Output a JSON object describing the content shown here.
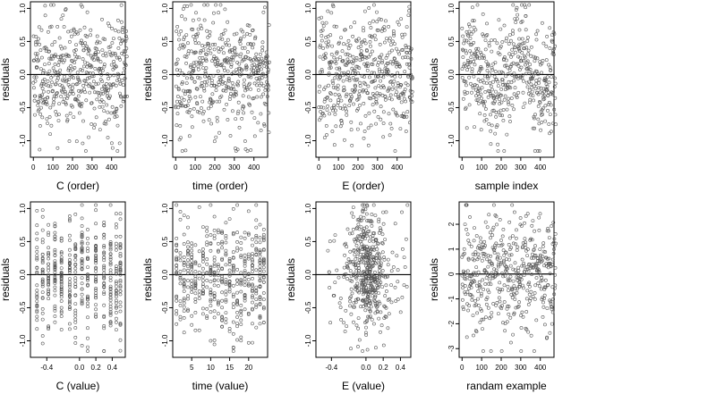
{
  "chart_data": [
    {
      "type": "scatter",
      "xlabel": "C (order)",
      "ylabel": "residuals",
      "xlim": [
        -15,
        470
      ],
      "ylim": [
        -1.25,
        1.1
      ],
      "xticks": [
        0,
        100,
        200,
        300,
        400
      ],
      "xtick_labels": [
        "0",
        "100",
        "200",
        "300",
        "400"
      ],
      "yticks": [
        -1.0,
        -0.5,
        0.0,
        0.5,
        1.0
      ],
      "ytick_labels": [
        "-1.0",
        "-0.5",
        "0.0",
        "0.5",
        "1.0"
      ],
      "hline": 0,
      "n": 480,
      "grid": false,
      "x_kind": "index",
      "seed": 11
    },
    {
      "type": "scatter",
      "xlabel": "time (order)",
      "ylabel": "residuals",
      "xlim": [
        -15,
        470
      ],
      "ylim": [
        -1.25,
        1.1
      ],
      "xticks": [
        0,
        100,
        200,
        300,
        400
      ],
      "xtick_labels": [
        "0",
        "100",
        "200",
        "300",
        "400"
      ],
      "yticks": [
        -1.0,
        -0.5,
        0.0,
        0.5,
        1.0
      ],
      "ytick_labels": [
        "-1.0",
        "-0.5",
        "0.0",
        "0.5",
        "1.0"
      ],
      "hline": 0,
      "n": 480,
      "grid": false,
      "x_kind": "index",
      "seed": 23
    },
    {
      "type": "scatter",
      "xlabel": "E (order)",
      "ylabel": "residuals",
      "xlim": [
        -15,
        470
      ],
      "ylim": [
        -1.25,
        1.1
      ],
      "xticks": [
        0,
        100,
        200,
        300,
        400
      ],
      "xtick_labels": [
        "0",
        "100",
        "200",
        "300",
        "400"
      ],
      "yticks": [
        -1.0,
        -0.5,
        0.0,
        0.5,
        1.0
      ],
      "ytick_labels": [
        "-1.0",
        "-0.5",
        "0.0",
        "0.5",
        "1.0"
      ],
      "hline": 0,
      "n": 480,
      "grid": false,
      "x_kind": "index",
      "seed": 37
    },
    {
      "type": "scatter",
      "xlabel": "sample index",
      "ylabel": "residuals",
      "xlim": [
        -15,
        470
      ],
      "ylim": [
        -1.25,
        1.1
      ],
      "xticks": [
        0,
        100,
        200,
        300,
        400
      ],
      "xtick_labels": [
        "0",
        "100",
        "200",
        "300",
        "400"
      ],
      "yticks": [
        -1.0,
        -0.5,
        0.0,
        0.5,
        1.0
      ],
      "ytick_labels": [
        "-1.0",
        "-0.5",
        "0.0",
        "0.5",
        "1.0"
      ],
      "hline": 0,
      "n": 480,
      "grid": false,
      "x_kind": "index_wave",
      "seed": 41
    },
    {
      "type": "scatter",
      "xlabel": "C (value)",
      "ylabel": "residuals",
      "xlim": [
        -0.6,
        0.56
      ],
      "ylim": [
        -1.25,
        1.1
      ],
      "xticks": [
        -0.4,
        0.0,
        0.2,
        0.4
      ],
      "xtick_labels": [
        "-0.4",
        "0.0",
        "0.2",
        "0.4"
      ],
      "yticks": [
        -1.0,
        -0.5,
        0.0,
        0.5,
        1.0
      ],
      "ytick_labels": [
        "-1.0",
        "-0.5",
        "0.0",
        "0.5",
        "1.0"
      ],
      "hline": 0,
      "n": 480,
      "grid": false,
      "x_kind": "discrete",
      "x_levels": [
        -0.52,
        -0.45,
        -0.38,
        -0.3,
        -0.22,
        -0.12,
        -0.05,
        0.03,
        0.1,
        0.2,
        0.3,
        0.38,
        0.45,
        0.5
      ],
      "seed": 53
    },
    {
      "type": "scatter",
      "xlabel": "time (value)",
      "ylabel": "residuals",
      "xlim": [
        0,
        25
      ],
      "ylim": [
        -1.25,
        1.1
      ],
      "xticks": [
        5,
        10,
        15,
        20
      ],
      "xtick_labels": [
        "5",
        "10",
        "15",
        "20"
      ],
      "yticks": [
        -1.0,
        -0.5,
        0.0,
        0.5,
        1.0
      ],
      "ytick_labels": [
        "-1.0",
        "-0.5",
        "0.0",
        "0.5",
        "1.0"
      ],
      "hline": 0,
      "n": 480,
      "grid": false,
      "x_kind": "discrete",
      "x_levels": [
        1,
        2,
        3,
        4,
        5,
        6,
        7,
        8,
        9,
        10,
        11,
        12,
        13,
        14,
        15,
        16,
        17,
        18,
        19,
        20,
        21,
        22,
        23,
        24
      ],
      "seed": 61
    },
    {
      "type": "scatter",
      "xlabel": "E (value)",
      "ylabel": "residuals",
      "xlim": [
        -0.58,
        0.52
      ],
      "ylim": [
        -1.25,
        1.1
      ],
      "xticks": [
        -0.4,
        0.0,
        0.2,
        0.4
      ],
      "xtick_labels": [
        "-0.4",
        "0.0",
        "0.2",
        "0.4"
      ],
      "yticks": [
        -1.0,
        -0.5,
        0.0,
        0.5,
        1.0
      ],
      "ytick_labels": [
        "-1.0",
        "-0.5",
        "0.0",
        "0.5",
        "1.0"
      ],
      "hline": 0,
      "n": 480,
      "grid": false,
      "x_kind": "concentrated",
      "seed": 71
    },
    {
      "type": "scatter",
      "xlabel": "randam example",
      "ylabel": "residuals",
      "xlim": [
        -15,
        470
      ],
      "ylim": [
        -3.35,
        2.9
      ],
      "xticks": [
        0,
        100,
        200,
        300,
        400
      ],
      "xtick_labels": [
        "0",
        "100",
        "200",
        "300",
        "400"
      ],
      "yticks": [
        -3,
        -2,
        -1,
        0,
        1,
        2
      ],
      "ytick_labels": [
        "-3",
        "-2",
        "-1",
        "0",
        "1",
        "2"
      ],
      "hline": 0,
      "n": 480,
      "grid": false,
      "x_kind": "index_wide",
      "seed": 83
    }
  ]
}
